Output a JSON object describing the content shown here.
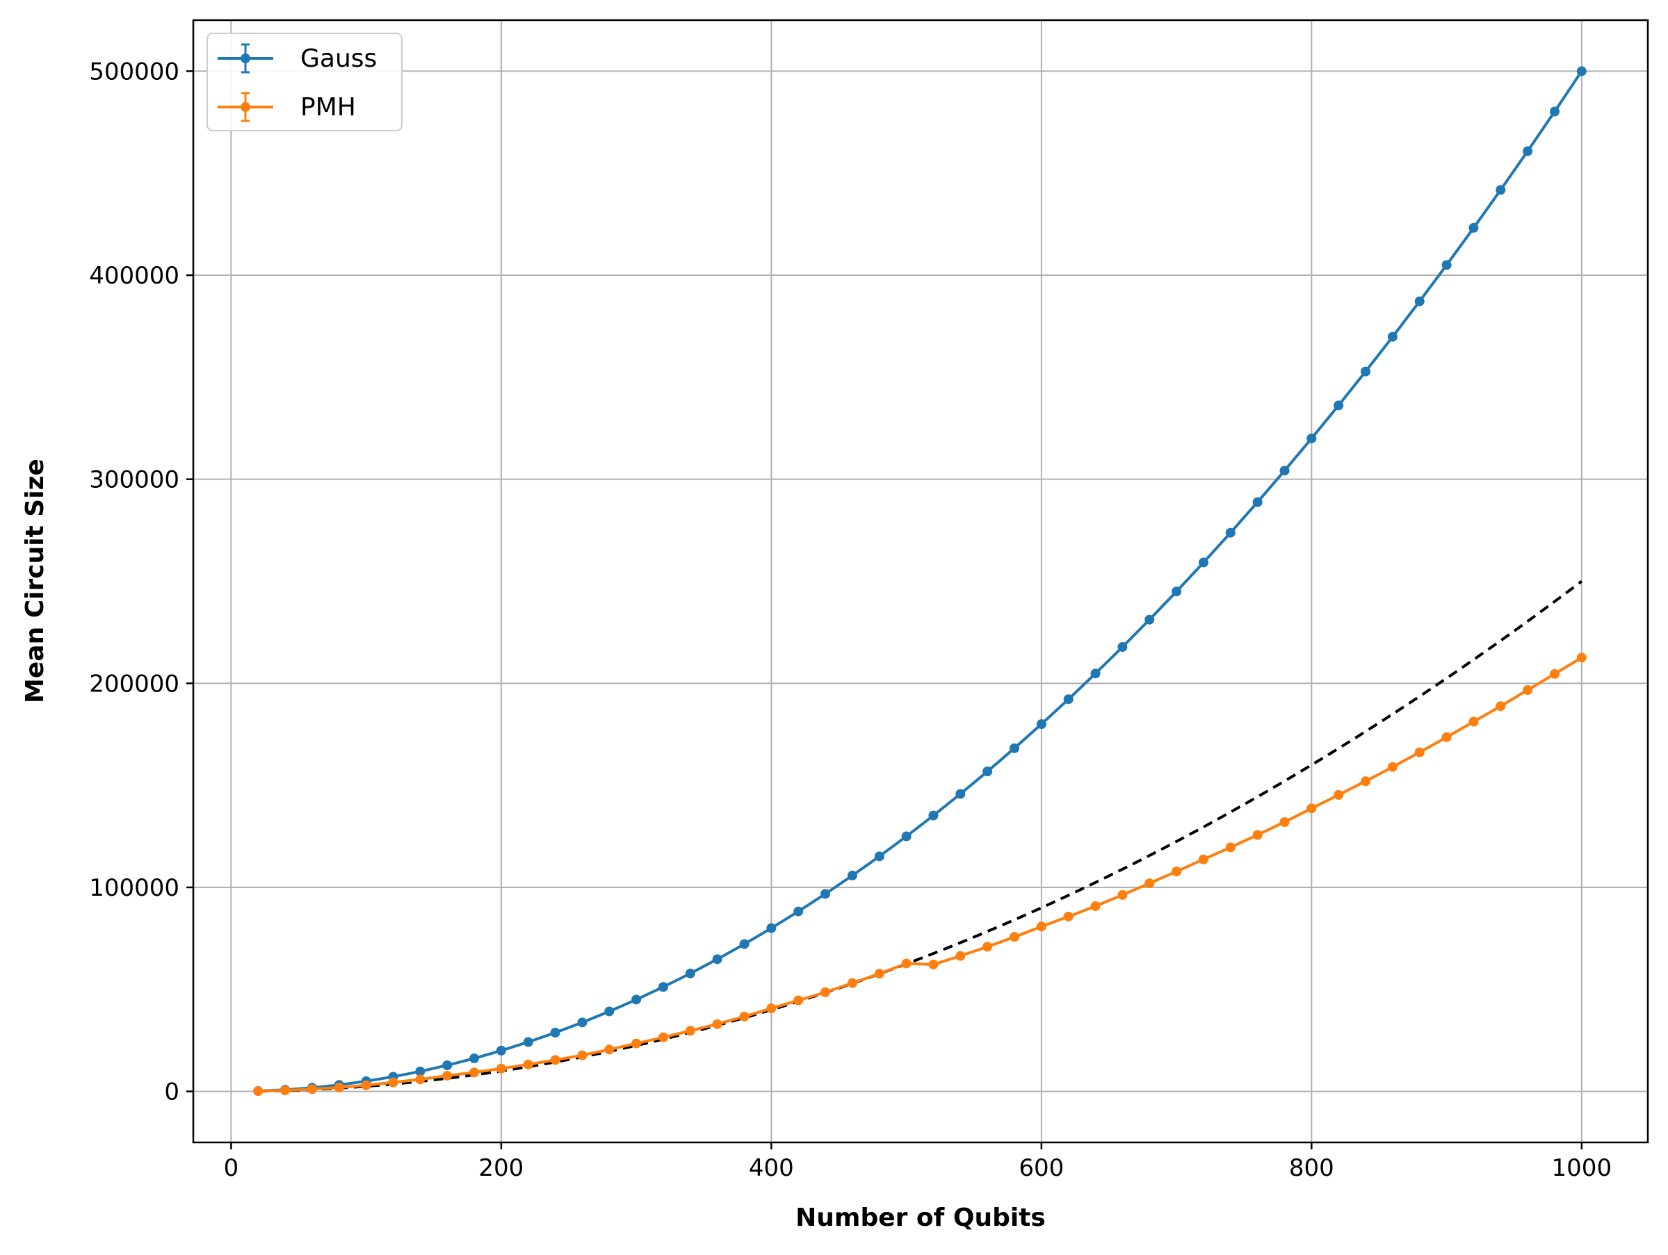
{
  "chart_data": {
    "type": "line",
    "xlabel": "Number of Qubits",
    "ylabel": "Mean Circuit Size",
    "xlim": [
      -28,
      1049
    ],
    "ylim": [
      -25000,
      525000
    ],
    "grid": true,
    "legend_position": "top-left",
    "x_ticks": [
      0,
      200,
      400,
      600,
      800,
      1000
    ],
    "y_ticks": [
      0,
      100000,
      200000,
      300000,
      400000,
      500000
    ],
    "x": [
      20,
      40,
      60,
      80,
      100,
      120,
      140,
      160,
      180,
      200,
      220,
      240,
      260,
      280,
      300,
      320,
      340,
      360,
      380,
      400,
      420,
      440,
      460,
      480,
      500,
      520,
      540,
      560,
      580,
      600,
      620,
      640,
      660,
      680,
      700,
      720,
      740,
      760,
      780,
      800,
      820,
      840,
      860,
      880,
      900,
      920,
      940,
      960,
      980,
      1000
    ],
    "series": [
      {
        "name": "Gauss",
        "color": "#1f77b4",
        "values": [
          200,
          800,
          1800,
          3200,
          5000,
          7200,
          9800,
          12800,
          16200,
          20000,
          24200,
          28800,
          33800,
          39200,
          45000,
          51200,
          57800,
          64800,
          72200,
          80000,
          88200,
          96800,
          105800,
          115200,
          125000,
          135200,
          145800,
          156800,
          168200,
          180000,
          192200,
          204800,
          217800,
          231200,
          245000,
          259200,
          273800,
          288800,
          304200,
          320000,
          336200,
          352800,
          369800,
          387200,
          405000,
          423200,
          441800,
          460800,
          480200,
          500000
        ]
      },
      {
        "name": "PMH",
        "color": "#ff7f0e",
        "values": [
          150,
          500,
          1100,
          1900,
          3000,
          4400,
          5900,
          7700,
          9300,
          11200,
          13200,
          15400,
          17700,
          20500,
          23500,
          26500,
          29700,
          33000,
          36700,
          40700,
          44600,
          48600,
          53100,
          57700,
          62700,
          62200,
          66400,
          70900,
          75700,
          80800,
          85700,
          90800,
          96300,
          102000,
          107800,
          113700,
          119600,
          125700,
          132000,
          138700,
          145300,
          152000,
          159000,
          166200,
          173600,
          181200,
          188800,
          196700,
          204600,
          212600
        ]
      }
    ],
    "reference_curve": {
      "style": "dashed",
      "color": "#000000",
      "formula": "n^2/4"
    }
  }
}
